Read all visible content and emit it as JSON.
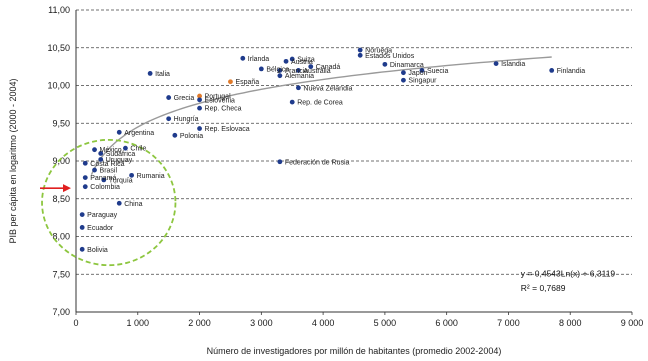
{
  "chart_data": {
    "type": "scatter",
    "xlabel": "Número de investigadores por millón de habitantes (promedio 2002-2004)",
    "ylabel": "PIB per cápita en logaritmo (2000 - 2004)",
    "xlim": [
      0,
      9000
    ],
    "ylim": [
      7.0,
      11.0
    ],
    "x_ticks": [
      {
        "value": 0,
        "label": "0"
      },
      {
        "value": 1000,
        "label": "1 000"
      },
      {
        "value": 2000,
        "label": "2 000"
      },
      {
        "value": 3000,
        "label": "3 000"
      },
      {
        "value": 4000,
        "label": "4 000"
      },
      {
        "value": 5000,
        "label": "5 000"
      },
      {
        "value": 6000,
        "label": "6 000"
      },
      {
        "value": 7000,
        "label": "7 000"
      },
      {
        "value": 8000,
        "label": "8 000"
      },
      {
        "value": 9000,
        "label": "9 000"
      }
    ],
    "y_ticks": [
      {
        "value": 7.0,
        "label": "7,00"
      },
      {
        "value": 7.5,
        "label": "7,50"
      },
      {
        "value": 8.0,
        "label": "8,00"
      },
      {
        "value": 8.5,
        "label": "8,50"
      },
      {
        "value": 9.0,
        "label": "9,00"
      },
      {
        "value": 9.5,
        "label": "9,50"
      },
      {
        "value": 10.0,
        "label": "10,00"
      },
      {
        "value": 10.5,
        "label": "10,50"
      },
      {
        "value": 11.0,
        "label": "11,00"
      }
    ],
    "grid": "horizontal-dashed",
    "trendline": {
      "type": "logarithmic",
      "a": 0.4543,
      "b": 6.3119,
      "x_from": 250,
      "x_to": 7700
    },
    "equation": "y = 0,4543Ln(x) + 6,3119",
    "r_squared": "R² = 0,7689",
    "colors": {
      "point": "#1f3b8c",
      "highlight_point": "#e07a2a",
      "ellipse": "#8dc63f",
      "arrow": "#e02020",
      "trend": "#9a9a9a"
    },
    "points": [
      {
        "label": "Irlanda",
        "x": 2700,
        "y": 10.36
      },
      {
        "label": "Suiza",
        "x": 3500,
        "y": 10.35
      },
      {
        "label": "Austria",
        "x": 3400,
        "y": 10.32
      },
      {
        "label": "Noruega",
        "x": 4600,
        "y": 10.47
      },
      {
        "label": "Estados Unidos",
        "x": 4600,
        "y": 10.4
      },
      {
        "label": "Dinamarca",
        "x": 5000,
        "y": 10.28
      },
      {
        "label": "Islandia",
        "x": 6800,
        "y": 10.29
      },
      {
        "label": "Canadá",
        "x": 3800,
        "y": 10.25
      },
      {
        "label": "Bélgica",
        "x": 3000,
        "y": 10.22
      },
      {
        "label": "Francia",
        "x": 3300,
        "y": 10.2
      },
      {
        "label": "Australia",
        "x": 3600,
        "y": 10.2
      },
      {
        "label": "Suecia",
        "x": 5600,
        "y": 10.2
      },
      {
        "label": "Finlandia",
        "x": 7700,
        "y": 10.2
      },
      {
        "label": "Japón",
        "x": 5300,
        "y": 10.17
      },
      {
        "label": "Italia",
        "x": 1200,
        "y": 10.16
      },
      {
        "label": "Alemania",
        "x": 3300,
        "y": 10.13
      },
      {
        "label": "España",
        "x": 2500,
        "y": 10.05,
        "highlight": true
      },
      {
        "label": "Singapur",
        "x": 5300,
        "y": 10.07
      },
      {
        "label": "Nueva Zelandia",
        "x": 3600,
        "y": 9.97
      },
      {
        "label": "Grecia",
        "x": 1500,
        "y": 9.84
      },
      {
        "label": "Portugal",
        "x": 2000,
        "y": 9.86,
        "highlight": true
      },
      {
        "label": "Eslovenia",
        "x": 2000,
        "y": 9.81
      },
      {
        "label": "Rep. de Corea",
        "x": 3500,
        "y": 9.78
      },
      {
        "label": "Rep. Checa",
        "x": 2000,
        "y": 9.7
      },
      {
        "label": "Hungría",
        "x": 1500,
        "y": 9.56
      },
      {
        "label": "Rep. Eslovaca",
        "x": 2000,
        "y": 9.43
      },
      {
        "label": "Argentina",
        "x": 700,
        "y": 9.38
      },
      {
        "label": "Polonia",
        "x": 1600,
        "y": 9.34
      },
      {
        "label": "Chile",
        "x": 800,
        "y": 9.17
      },
      {
        "label": "México",
        "x": 300,
        "y": 9.15
      },
      {
        "label": "Sudáfrica",
        "x": 400,
        "y": 9.1
      },
      {
        "label": "Uruguay",
        "x": 400,
        "y": 9.02
      },
      {
        "label": "Costa Rica",
        "x": 150,
        "y": 8.97
      },
      {
        "label": "Federación de Rusia",
        "x": 3300,
        "y": 8.99
      },
      {
        "label": "Brasil",
        "x": 300,
        "y": 8.88
      },
      {
        "label": "Rumania",
        "x": 900,
        "y": 8.81
      },
      {
        "label": "Panamá",
        "x": 150,
        "y": 8.78
      },
      {
        "label": "Turquía",
        "x": 450,
        "y": 8.75
      },
      {
        "label": "Colombia",
        "x": 150,
        "y": 8.66
      },
      {
        "label": "China",
        "x": 700,
        "y": 8.44
      },
      {
        "label": "Paraguay",
        "x": 100,
        "y": 8.29
      },
      {
        "label": "Ecuador",
        "x": 100,
        "y": 8.12
      },
      {
        "label": "Bolivia",
        "x": 100,
        "y": 7.83
      }
    ]
  }
}
